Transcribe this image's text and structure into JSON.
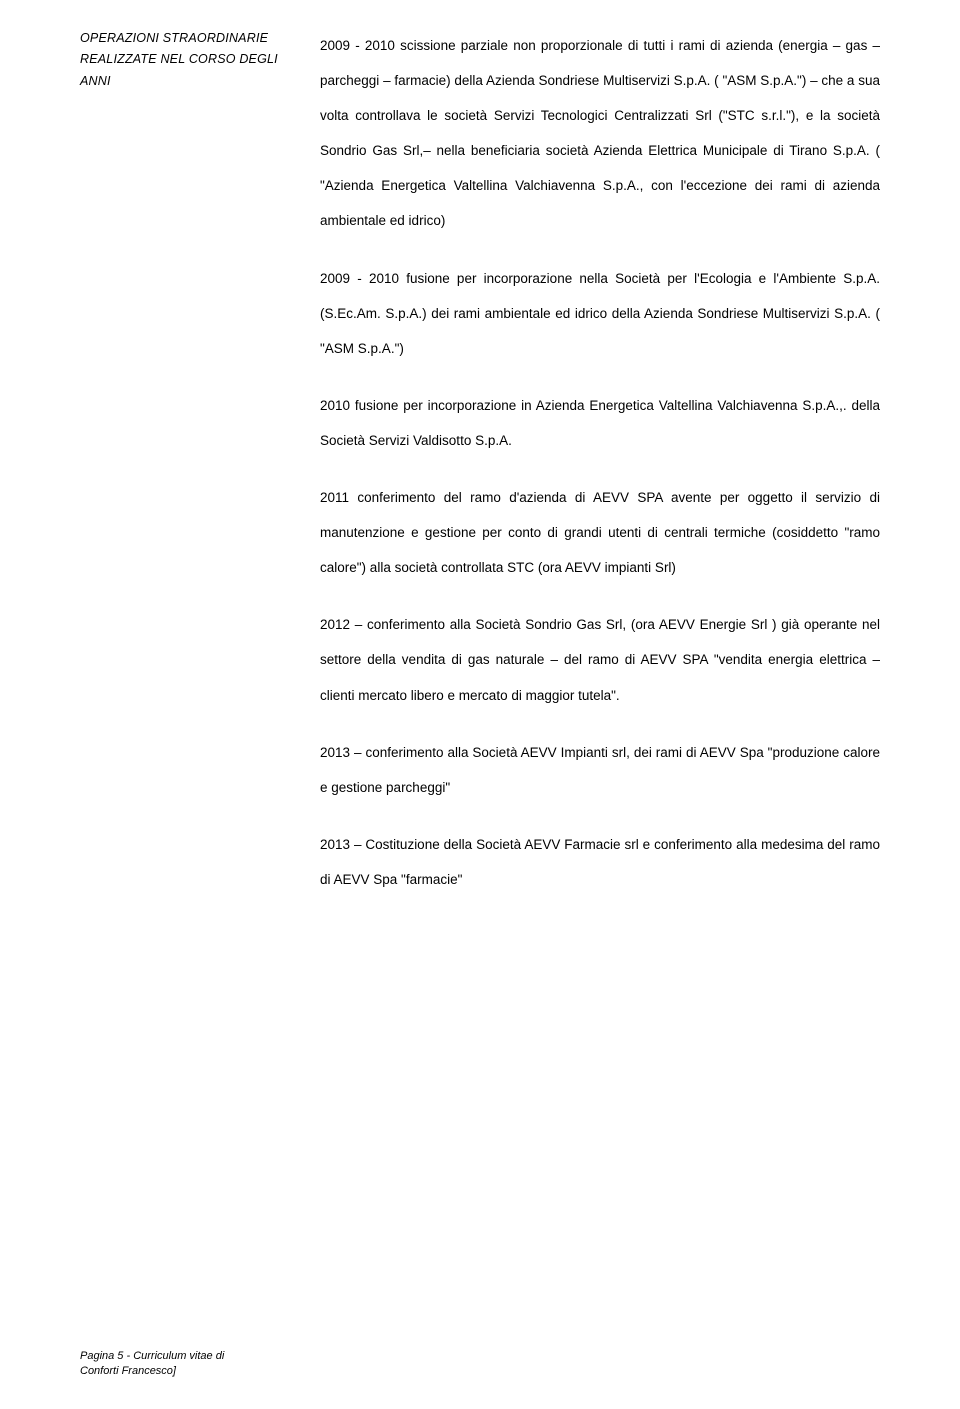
{
  "left": {
    "line1": "OPERAZIONI STRAORDINARIE",
    "line2": "REALIZZATE NEL CORSO DEGLI ANNI"
  },
  "paragraphs": {
    "p1": "2009 - 2010 scissione parziale non proporzionale di tutti i rami di azienda (energia – gas – parcheggi – farmacie) della Azienda Sondriese Multiservizi S.p.A. ( \"ASM S.p.A.\") – che a sua volta controllava le società Servizi Tecnologici Centralizzati Srl (\"STC s.r.l.\"), e la società Sondrio Gas Srl,– nella beneficiaria società Azienda Elettrica Municipale di Tirano S.p.A. ( \"Azienda Energetica Valtellina Valchiavenna S.p.A., con l'eccezione dei rami di azienda ambientale ed idrico)",
    "p2": "2009 - 2010  fusione per incorporazione nella Società per l'Ecologia e l'Ambiente S.p.A. (S.Ec.Am. S.p.A.) dei rami ambientale ed idrico della Azienda Sondriese Multiservizi S.p.A. ( \"ASM S.p.A.\")",
    "p3": "2010 fusione per incorporazione in Azienda Energetica Valtellina Valchiavenna S.p.A.,. della Società Servizi Valdisotto S.p.A.",
    "p4": "2011 conferimento del ramo d'azienda di AEVV SPA avente per oggetto il servizio di manutenzione e gestione per conto di grandi utenti di centrali termiche (cosiddetto \"ramo calore\") alla società controllata STC (ora AEVV impianti Srl)",
    "p5": "2012 – conferimento  alla Società Sondrio Gas Srl, (ora AEVV Energie Srl ) già operante nel settore della vendita di gas naturale – del ramo di AEVV SPA  \"vendita energia elettrica – clienti mercato libero e mercato di maggior tutela\".",
    "p6": "2013 – conferimento  alla Società AEVV Impianti srl,  dei rami di AEVV Spa \"produzione calore e gestione parcheggi\"",
    "p7": "2013 – Costituzione della Società AEVV Farmacie srl e conferimento  alla medesima del ramo di AEVV Spa \"farmacie\""
  },
  "footer": {
    "line1": "Pagina 5 - Curriculum vitae di",
    "line2": "Conforti Francesco]"
  }
}
